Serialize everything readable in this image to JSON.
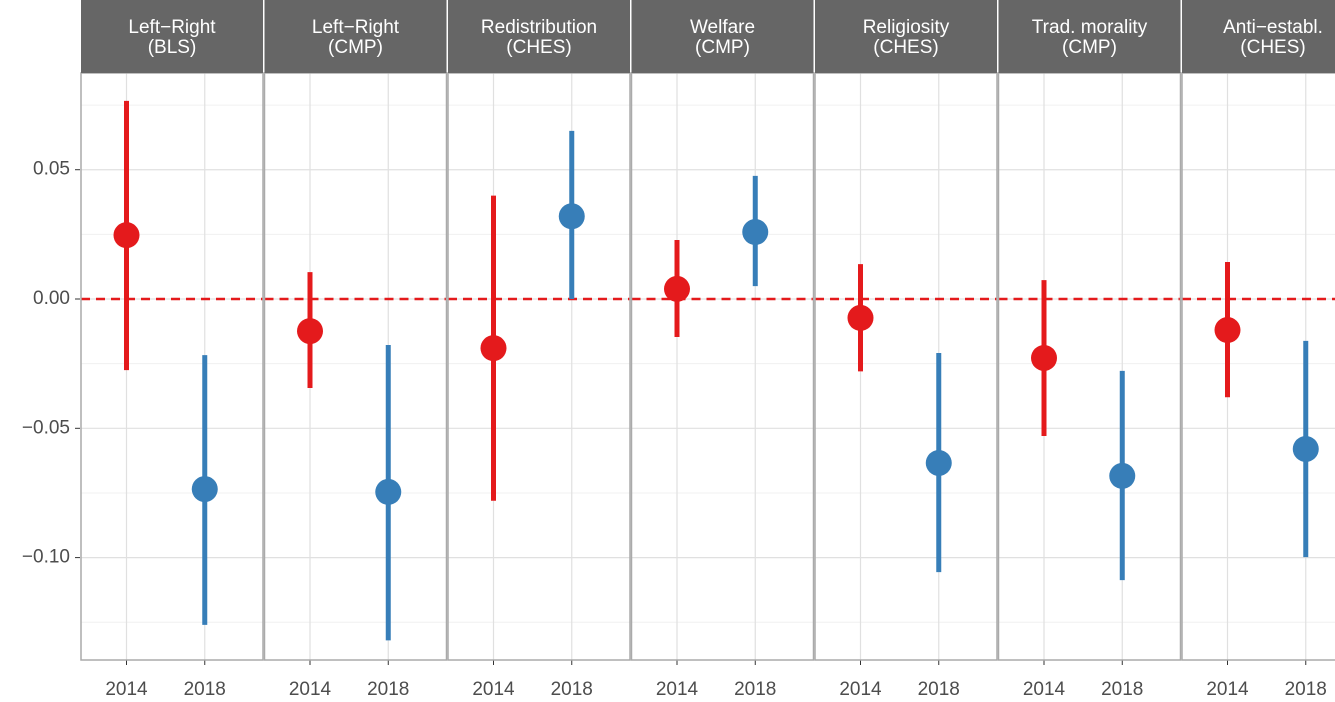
{
  "chart_data": {
    "type": "pointrange",
    "categories": [
      "2014",
      "2018"
    ],
    "colors": [
      "#e41a1c",
      "#377eb8"
    ],
    "ylim": [
      -0.1396,
      0.0874
    ],
    "yticks": [
      {
        "value": -0.1,
        "label": "−0.10"
      },
      {
        "value": -0.05,
        "label": "−0.05"
      },
      {
        "value": 0,
        "label": "0.00"
      },
      0.05
    ],
    "minor_yticks": [
      -0.125,
      -0.075,
      -0.025,
      0.025,
      0.075
    ],
    "reference_line": 0,
    "reference_color": "#e41a1c",
    "grid": true,
    "panels": [
      {
        "title": [
          "Left−Right",
          "(BLS)"
        ],
        "estimate": [
          0.0247,
          -0.0735
        ],
        "lower": [
          -0.0275,
          -0.126
        ],
        "upper": [
          0.0766,
          -0.0217
        ]
      },
      {
        "title": [
          "Left−Right",
          "(CMP)"
        ],
        "estimate": [
          -0.0124,
          -0.0746
        ],
        "lower": [
          -0.0344,
          -0.132
        ],
        "upper": [
          0.0104,
          -0.0178
        ]
      },
      {
        "title": [
          "Redistribution",
          "(CHES)"
        ],
        "estimate": [
          -0.019,
          0.032
        ],
        "lower": [
          -0.078,
          0.0
        ],
        "upper": [
          0.04,
          0.065
        ]
      },
      {
        "title": [
          "Welfare",
          "(CMP)"
        ],
        "estimate": [
          0.0039,
          0.0259
        ],
        "lower": [
          -0.0147,
          0.005
        ],
        "upper": [
          0.0228,
          0.0476
        ]
      },
      {
        "title": [
          "Religiosity",
          "(CHES)"
        ],
        "estimate": [
          -0.0073,
          -0.0634
        ],
        "lower": [
          -0.028,
          -0.1056
        ],
        "upper": [
          0.0135,
          -0.0209
        ]
      },
      {
        "title": [
          "Trad. morality",
          "(CMP)"
        ],
        "estimate": [
          -0.0228,
          -0.0684
        ],
        "lower": [
          -0.053,
          -0.1087
        ],
        "upper": [
          0.0073,
          -0.0278
        ]
      },
      {
        "title": [
          "Anti−establ.",
          "(CHES)"
        ],
        "estimate": [
          -0.012,
          -0.058
        ],
        "lower": [
          -0.038,
          -0.0998
        ],
        "upper": [
          0.0143,
          -0.0162
        ]
      }
    ]
  }
}
